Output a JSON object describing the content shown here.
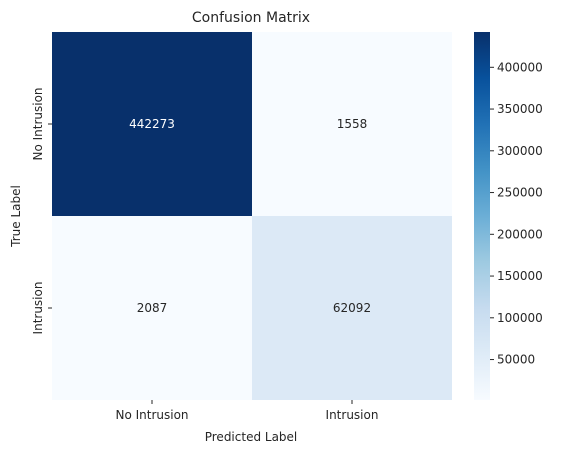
{
  "chart_data": {
    "type": "heatmap",
    "title": "Confusion Matrix",
    "xlabel": "Predicted Label",
    "ylabel": "True Label",
    "x_categories": [
      "No Intrusion",
      "Intrusion"
    ],
    "y_categories": [
      "No Intrusion",
      "Intrusion"
    ],
    "values": [
      [
        442273,
        1558
      ],
      [
        2087,
        62092
      ]
    ],
    "colormap": "Blues",
    "colorbar": {
      "range": [
        1558,
        442273
      ],
      "ticks": [
        50000,
        100000,
        150000,
        200000,
        250000,
        300000,
        350000,
        400000
      ],
      "tick_labels": [
        "50000",
        "100000",
        "150000",
        "200000",
        "250000",
        "300000",
        "350000",
        "400000"
      ]
    },
    "colors": {
      "low": "#f7fbff",
      "high": "#08306b"
    }
  }
}
